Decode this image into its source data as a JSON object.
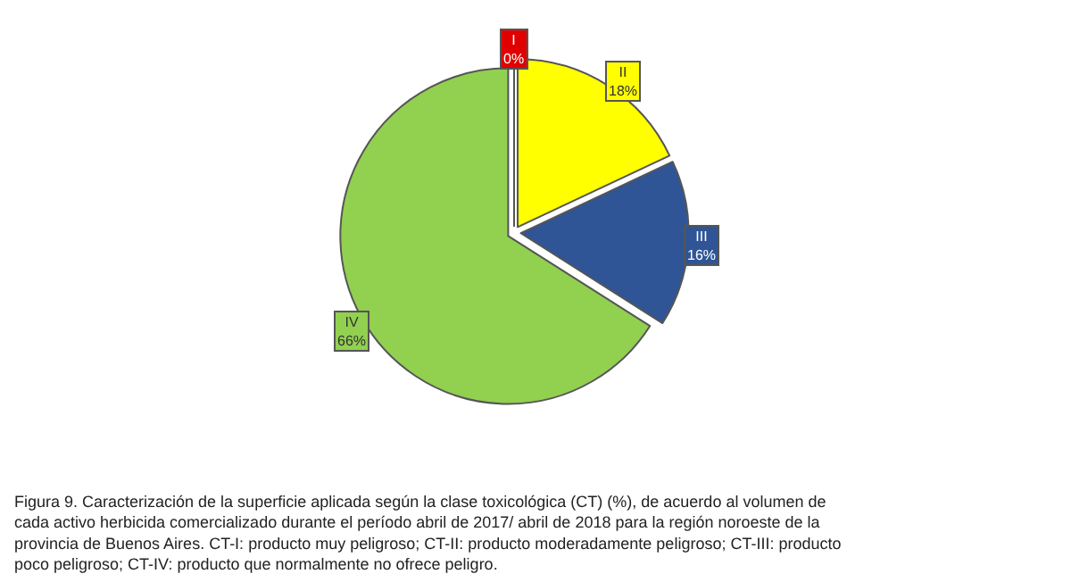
{
  "chart_data": {
    "type": "pie",
    "categories": [
      "I",
      "II",
      "III",
      "IV"
    ],
    "values": [
      0,
      18,
      16,
      66
    ],
    "value_labels": [
      "0%",
      "18%",
      "16%",
      "66%"
    ],
    "colors": [
      "#e00000",
      "#ffff00",
      "#2f5597",
      "#92d050"
    ],
    "annotations": [
      "Figura 9. Caracterización de la superficie aplicada según la clase toxicológica (CT) (%), de acuerdo al volumen de cada activo herbicida comercializado durante el período abril de 2017/ abril de 2018 para la región noroeste de la provincia de Buenos Aires. CT-I: producto muy peligroso; CT-II: producto moderadamente peligroso; CT-III: producto poco peligroso; CT-IV: producto que normalmente no ofrece peligro."
    ]
  }
}
